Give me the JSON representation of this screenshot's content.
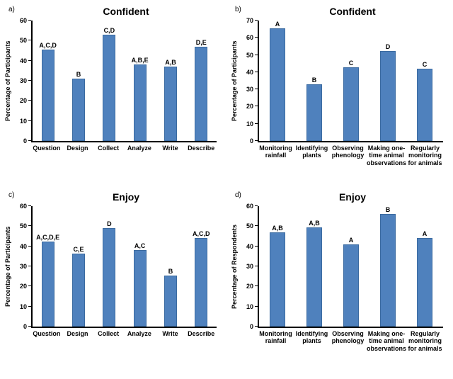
{
  "bar_color": "#4f81bd",
  "chart_data": [
    {
      "type": "bar",
      "panel_label": "a)",
      "title": "Confident",
      "ylabel": "Percentage of Participants",
      "ylim": [
        0,
        60
      ],
      "ytick_step": 10,
      "grid": false,
      "legend": false,
      "categories": [
        "Question",
        "Design",
        "Collect",
        "Analyze",
        "Write",
        "Describe"
      ],
      "values": [
        45.5,
        31,
        53,
        38,
        37,
        47
      ],
      "bar_labels": [
        "A,C,D",
        "B",
        "C,D",
        "A,B,E",
        "A,B",
        "D,E"
      ]
    },
    {
      "type": "bar",
      "panel_label": "b)",
      "title": "Confident",
      "ylabel": "Percentage of Participants",
      "ylim": [
        0,
        70
      ],
      "ytick_step": 10,
      "grid": false,
      "legend": false,
      "categories": [
        "Monitoring rainfall",
        "Identifying plants",
        "Observing phenology",
        "Making one-time animal observations",
        "Regularly monitoring for animals"
      ],
      "values": [
        69,
        33,
        43,
        52.5,
        42
      ],
      "bar_labels": [
        "A",
        "B",
        "C",
        "D",
        "C"
      ]
    },
    {
      "type": "bar",
      "panel_label": "c)",
      "title": "Enjoy",
      "ylabel": "Percentage of Participants",
      "ylim": [
        0,
        60
      ],
      "ytick_step": 10,
      "grid": false,
      "legend": false,
      "categories": [
        "Question",
        "Design",
        "Collect",
        "Analyze",
        "Write",
        "Describe"
      ],
      "values": [
        42.5,
        36.5,
        49,
        38,
        25.5,
        44
      ],
      "bar_labels": [
        "A,C,D,E",
        "C,E",
        "D",
        "A,C",
        "B",
        "A,C,D"
      ]
    },
    {
      "type": "bar",
      "panel_label": "d)",
      "title": "Enjoy",
      "ylabel": "Percentage of Respondents",
      "ylim": [
        0,
        60
      ],
      "ytick_step": 10,
      "grid": false,
      "legend": false,
      "categories": [
        "Monitoring rainfall",
        "Identifying plants",
        "Observing phenology",
        "Making one-time animal observations",
        "Regularly monitoring for animals"
      ],
      "values": [
        47,
        49.5,
        41,
        56,
        44
      ],
      "bar_labels": [
        "A,B",
        "A,B",
        "A",
        "B",
        "A"
      ]
    }
  ]
}
